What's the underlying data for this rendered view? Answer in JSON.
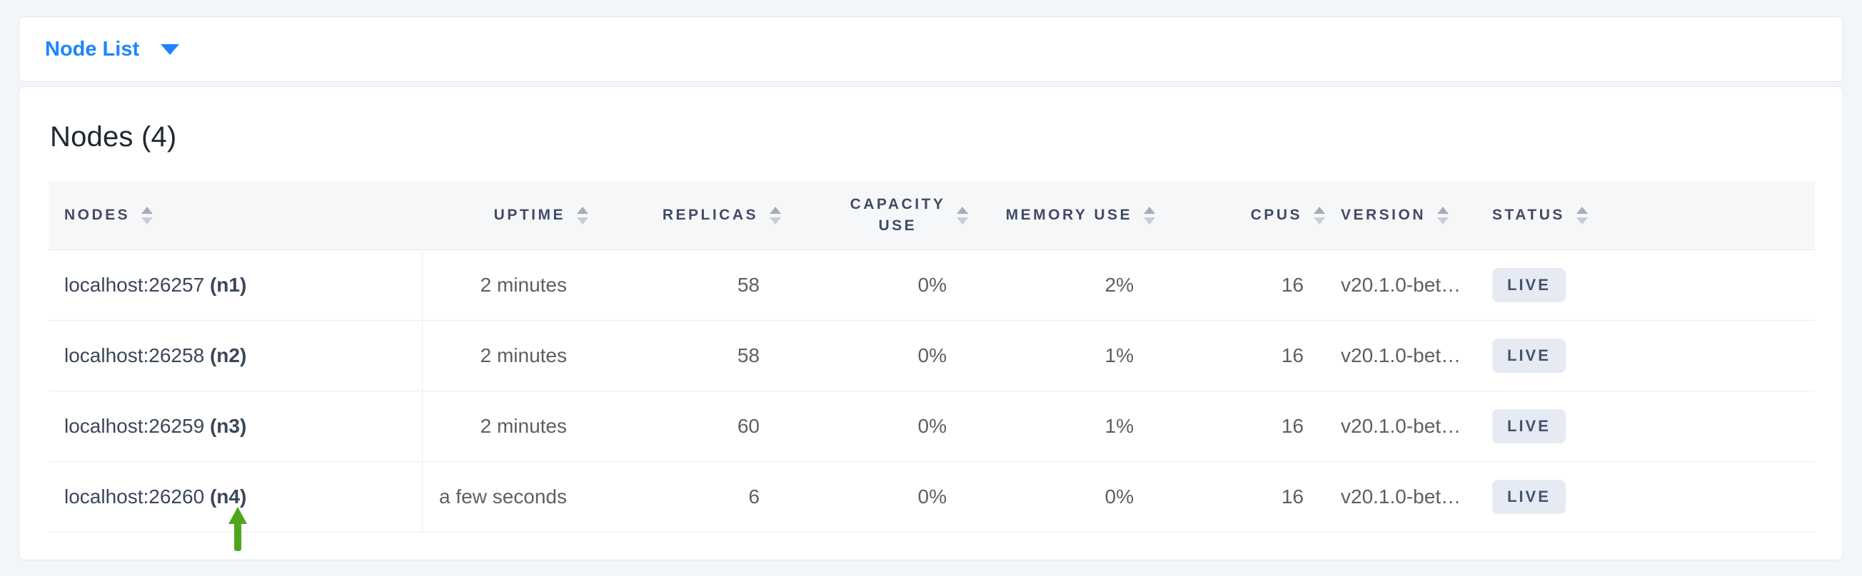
{
  "topbar": {
    "dropdown_label": "Node List"
  },
  "card": {
    "title": "Nodes (4)"
  },
  "table": {
    "columns": [
      {
        "id": "nodes",
        "label": "NODES",
        "align": "left",
        "sortable": true
      },
      {
        "id": "uptime",
        "label": "UPTIME",
        "align": "right",
        "sortable": true
      },
      {
        "id": "replicas",
        "label": "REPLICAS",
        "align": "right",
        "sortable": true
      },
      {
        "id": "capacity",
        "label": "CAPACITY USE",
        "align": "right",
        "sortable": true
      },
      {
        "id": "memory",
        "label": "MEMORY USE",
        "align": "right",
        "sortable": true
      },
      {
        "id": "cpus",
        "label": "CPUS",
        "align": "right",
        "sortable": true
      },
      {
        "id": "version",
        "label": "VERSION",
        "align": "left",
        "sortable": true
      },
      {
        "id": "status",
        "label": "STATUS",
        "align": "left",
        "sortable": true
      }
    ],
    "rows": [
      {
        "address": "localhost:26257",
        "name": "(n1)",
        "uptime": "2 minutes",
        "replicas": "58",
        "capacity_use": "0%",
        "memory_use": "2%",
        "cpus": "16",
        "version": "v20.1.0-bet…",
        "status": "LIVE"
      },
      {
        "address": "localhost:26258",
        "name": "(n2)",
        "uptime": "2 minutes",
        "replicas": "58",
        "capacity_use": "0%",
        "memory_use": "1%",
        "cpus": "16",
        "version": "v20.1.0-bet…",
        "status": "LIVE"
      },
      {
        "address": "localhost:26259",
        "name": "(n3)",
        "uptime": "2 minutes",
        "replicas": "60",
        "capacity_use": "0%",
        "memory_use": "1%",
        "cpus": "16",
        "version": "v20.1.0-bet…",
        "status": "LIVE"
      },
      {
        "address": "localhost:26260",
        "name": "(n4)",
        "uptime": "a few seconds",
        "replicas": "6",
        "capacity_use": "0%",
        "memory_use": "0%",
        "cpus": "16",
        "version": "v20.1.0-bet…",
        "status": "LIVE"
      }
    ]
  },
  "annotation": {
    "type": "green-up-arrow",
    "points_to": "(n4)",
    "color": "#4fa61e"
  },
  "colors": {
    "accent_blue": "#1b85ff",
    "badge_background": "#e6ebf3",
    "badge_text": "#44536e",
    "header_text": "#3f4c66",
    "page_background": "#f2f5fa"
  }
}
